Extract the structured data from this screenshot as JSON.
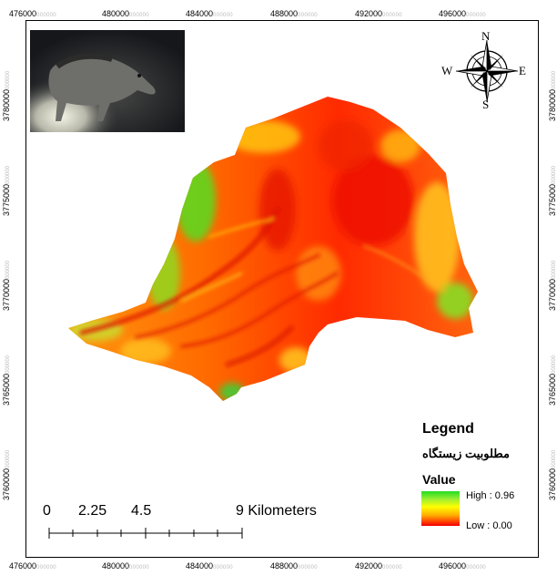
{
  "x_ticks": [
    {
      "major": "476000",
      "minor": "000000"
    },
    {
      "major": "480000",
      "minor": "000000"
    },
    {
      "major": "484000",
      "minor": "000000"
    },
    {
      "major": "488000",
      "minor": "000000"
    },
    {
      "major": "492000",
      "minor": "000000"
    },
    {
      "major": "496000",
      "minor": "000000"
    }
  ],
  "y_ticks": [
    {
      "major": "3780000",
      "minor": "000000"
    },
    {
      "major": "3775000",
      "minor": "000000"
    },
    {
      "major": "3770000",
      "minor": "000000"
    },
    {
      "major": "3765000",
      "minor": "000000"
    },
    {
      "major": "3760000",
      "minor": "000000"
    }
  ],
  "compass": {
    "n": "N",
    "s": "S",
    "e": "E",
    "w": "W"
  },
  "legend": {
    "title": "Legend",
    "layer": "مطلوبیت زیستگاه",
    "value_label": "Value",
    "high": "High : 0.96",
    "low": "Low : 0.00",
    "high_value": 0.96,
    "low_value": 0.0,
    "ramp_colors": [
      "#22dd22",
      "#ffff00",
      "#ee0000"
    ]
  },
  "scale": {
    "labels": [
      "0",
      "2.25",
      "4.5",
      "9 Kilometers"
    ]
  },
  "inset_photo": {
    "subject": "wild-boar-camera-trap"
  }
}
